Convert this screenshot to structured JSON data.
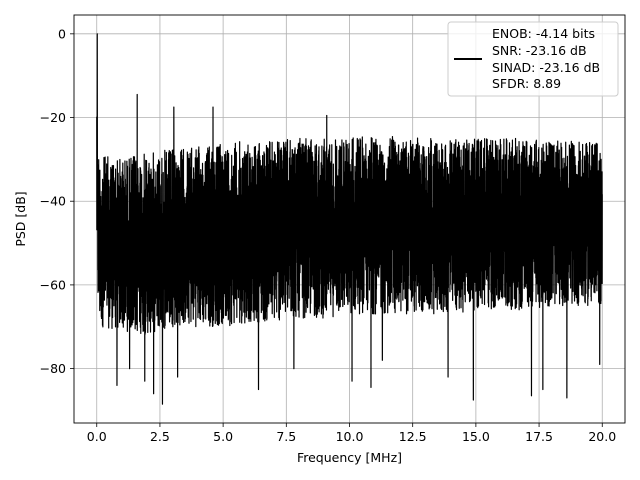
{
  "chart_data": {
    "type": "line",
    "title": "",
    "xlabel": "Frequency [MHz]",
    "ylabel": "PSD [dB]",
    "xlim": [
      -0.9,
      20.9
    ],
    "ylim": [
      -93,
      4.5
    ],
    "xticks": [
      0.0,
      2.5,
      5.0,
      7.5,
      10.0,
      12.5,
      15.0,
      17.5,
      20.0
    ],
    "xtick_labels": [
      "0.0",
      "2.5",
      "5.0",
      "7.5",
      "10.0",
      "12.5",
      "15.0",
      "17.5",
      "20.0"
    ],
    "yticks": [
      0,
      -20,
      -40,
      -60,
      -80
    ],
    "ytick_labels": [
      "0",
      "−20",
      "−40",
      "−60",
      "−80"
    ],
    "grid": true,
    "legend_position": "top-right",
    "series_color": "#000000",
    "series": [
      {
        "name": "ENOB: -4.14 bits\nSNR: -23.16 dB\nSINAD: -23.16 dB\nSFDR: 8.89",
        "legend_lines": [
          "ENOB: -4.14 bits",
          "SNR: -23.16 dB",
          "SINAD: -23.16 dB",
          "SFDR: 8.89"
        ],
        "x": [
          0.0,
          0.05,
          0.1,
          1.0,
          2.0,
          3.0,
          4.0,
          5.0,
          6.0,
          7.0,
          8.0,
          9.0,
          10.0,
          11.0,
          12.0,
          13.0,
          14.0,
          15.0,
          16.0,
          17.0,
          18.0,
          19.0,
          20.0
        ],
        "upper_envelope": [
          0,
          -26,
          -29,
          -29.5,
          -28.5,
          -27.5,
          -27,
          -26,
          -25.5,
          -25.5,
          -25,
          -25,
          -24.5,
          -24.5,
          -24.5,
          -25,
          -25,
          -25,
          -25,
          -25,
          -25.5,
          -25.5,
          -26
        ],
        "lower_envelope": [
          -55,
          -66,
          -70,
          -71,
          -72,
          -70,
          -70,
          -70,
          -69,
          -69,
          -68,
          -68,
          -67,
          -67,
          -67,
          -67,
          -67,
          -66,
          -66,
          -66,
          -65,
          -65,
          -65
        ],
        "spurs": [
          {
            "x": 0.02,
            "y": 0
          },
          {
            "x": 1.6,
            "y": -14.5
          },
          {
            "x": 3.05,
            "y": -17.5
          },
          {
            "x": 4.6,
            "y": -17.5
          },
          {
            "x": 9.1,
            "y": -19.5
          }
        ],
        "deep_dips": [
          {
            "x": 0.8,
            "y": -84
          },
          {
            "x": 1.3,
            "y": -80
          },
          {
            "x": 1.9,
            "y": -83
          },
          {
            "x": 2.25,
            "y": -86
          },
          {
            "x": 2.6,
            "y": -88.5
          },
          {
            "x": 3.2,
            "y": -82
          },
          {
            "x": 6.4,
            "y": -85
          },
          {
            "x": 7.8,
            "y": -80
          },
          {
            "x": 10.1,
            "y": -83
          },
          {
            "x": 10.85,
            "y": -84.5
          },
          {
            "x": 11.3,
            "y": -78
          },
          {
            "x": 13.9,
            "y": -82
          },
          {
            "x": 14.9,
            "y": -87.5
          },
          {
            "x": 17.2,
            "y": -86.5
          },
          {
            "x": 17.65,
            "y": -85
          },
          {
            "x": 18.6,
            "y": -87
          },
          {
            "x": 19.9,
            "y": -79
          }
        ]
      }
    ]
  }
}
